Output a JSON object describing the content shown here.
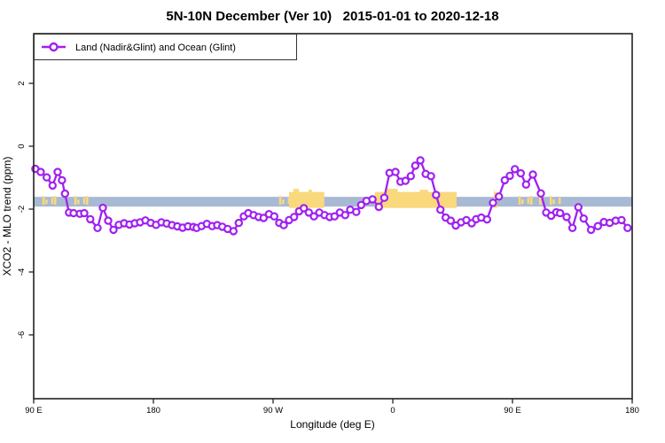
{
  "chart_data": {
    "type": "line",
    "title": "5N-10N December (Ver 10)   2015-01-01 to 2020-12-18",
    "xlabel": "Longitude (deg E)",
    "ylabel": "XCO2 - MLO trend (ppm)",
    "legend": [
      {
        "label": "Land (Nadir&Glint) and Ocean (Glint)",
        "color": "#A020F0",
        "marker": "open-circle"
      }
    ],
    "x_axis": {
      "range": [
        90,
        540
      ],
      "ticks": [
        {
          "value": 90,
          "label": "90 E"
        },
        {
          "value": 180,
          "label": "180"
        },
        {
          "value": 270,
          "label": "90 W"
        },
        {
          "value": 360,
          "label": "0"
        },
        {
          "value": 450,
          "label": "90 E"
        },
        {
          "value": 540,
          "label": "180"
        }
      ]
    },
    "y_axis": {
      "range": [
        -8.03,
        3.58
      ],
      "ticks": [
        {
          "value": 2,
          "label": "2"
        },
        {
          "value": 0,
          "label": "0"
        },
        {
          "value": -2,
          "label": "-2"
        },
        {
          "value": -4,
          "label": "-4"
        },
        {
          "value": -6,
          "label": "-6"
        }
      ]
    },
    "surface_band": {
      "description": "ocean-land strip along 5N-10N",
      "ocean_color": "#A8B9D4",
      "land_color": "#FAD87C",
      "value_from": -1.61,
      "value_to": -1.92,
      "land_segments": [
        {
          "from": 96.5,
          "to": 108.5,
          "style": "patchy"
        },
        {
          "from": 120.5,
          "to": 129.5,
          "style": "patchy"
        },
        {
          "from": 274.5,
          "to": 282.5,
          "style": "patchy"
        },
        {
          "from": 282,
          "to": 308.5,
          "style": "solid"
        },
        {
          "from": 346.5,
          "to": 408,
          "style": "solid"
        },
        {
          "from": 436,
          "to": 438.5,
          "style": "solid"
        },
        {
          "from": 454.5,
          "to": 463.5,
          "style": "patchy"
        },
        {
          "from": 470,
          "to": 475,
          "style": "patchy"
        },
        {
          "from": 478,
          "to": 485.5,
          "style": "patchy"
        }
      ]
    },
    "series": [
      {
        "name": "Land (Nadir&Glint) and Ocean (Glint)",
        "color": "#A020F0",
        "points": [
          [
            91.3,
            -0.72
          ],
          [
            95.3,
            -0.82
          ],
          [
            99.8,
            -0.99
          ],
          [
            104.2,
            -1.25
          ],
          [
            108,
            -0.82
          ],
          [
            111.3,
            -1.08
          ],
          [
            113.5,
            -1.51
          ],
          [
            116.5,
            -2.11
          ],
          [
            120,
            -2.13
          ],
          [
            124.7,
            -2.15
          ],
          [
            128,
            -2.13
          ],
          [
            132.5,
            -2.32
          ],
          [
            138,
            -2.6
          ],
          [
            142,
            -1.96
          ],
          [
            146,
            -2.37
          ],
          [
            150,
            -2.66
          ],
          [
            154,
            -2.5
          ],
          [
            158,
            -2.45
          ],
          [
            162,
            -2.49
          ],
          [
            166,
            -2.45
          ],
          [
            170,
            -2.42
          ],
          [
            174,
            -2.36
          ],
          [
            178,
            -2.44
          ],
          [
            182,
            -2.5
          ],
          [
            186,
            -2.42
          ],
          [
            190,
            -2.46
          ],
          [
            194,
            -2.51
          ],
          [
            198,
            -2.55
          ],
          [
            202,
            -2.59
          ],
          [
            206,
            -2.55
          ],
          [
            210,
            -2.57
          ],
          [
            212.5,
            -2.6
          ],
          [
            216.2,
            -2.54
          ],
          [
            220.2,
            -2.47
          ],
          [
            224.2,
            -2.54
          ],
          [
            228,
            -2.51
          ],
          [
            231.8,
            -2.56
          ],
          [
            235.8,
            -2.63
          ],
          [
            240.2,
            -2.7
          ],
          [
            244.2,
            -2.44
          ],
          [
            248,
            -2.23
          ],
          [
            251.3,
            -2.13
          ],
          [
            255.3,
            -2.19
          ],
          [
            259.1,
            -2.25
          ],
          [
            262.9,
            -2.28
          ],
          [
            266.9,
            -2.16
          ],
          [
            270.9,
            -2.23
          ],
          [
            274.7,
            -2.44
          ],
          [
            278,
            -2.51
          ],
          [
            282,
            -2.35
          ],
          [
            285.8,
            -2.25
          ],
          [
            289.5,
            -2.07
          ],
          [
            293.1,
            -1.97
          ],
          [
            296.9,
            -2.11
          ],
          [
            300.7,
            -2.23
          ],
          [
            304.7,
            -2.11
          ],
          [
            308.7,
            -2.19
          ],
          [
            312.5,
            -2.25
          ],
          [
            316.2,
            -2.23
          ],
          [
            320.2,
            -2.11
          ],
          [
            324.2,
            -2.19
          ],
          [
            328,
            -2.02
          ],
          [
            332.5,
            -2.09
          ],
          [
            336.2,
            -1.87
          ],
          [
            340.2,
            -1.74
          ],
          [
            344.7,
            -1.69
          ],
          [
            349.5,
            -1.93
          ],
          [
            353.6,
            -1.64
          ],
          [
            357.5,
            -0.85
          ],
          [
            362,
            -0.82
          ],
          [
            365.8,
            -1.13
          ],
          [
            369.5,
            -1.1
          ],
          [
            373.5,
            -0.95
          ],
          [
            376.9,
            -0.62
          ],
          [
            380.7,
            -0.45
          ],
          [
            384.7,
            -0.88
          ],
          [
            388.7,
            -0.95
          ],
          [
            392.5,
            -1.55
          ],
          [
            395.8,
            -2.02
          ],
          [
            399.8,
            -2.27
          ],
          [
            403.5,
            -2.37
          ],
          [
            407.3,
            -2.52
          ],
          [
            411.3,
            -2.42
          ],
          [
            415.3,
            -2.35
          ],
          [
            419.3,
            -2.45
          ],
          [
            422.7,
            -2.32
          ],
          [
            426.5,
            -2.27
          ],
          [
            430.9,
            -2.33
          ],
          [
            435.3,
            -1.8
          ],
          [
            439.8,
            -1.6
          ],
          [
            444.2,
            -1.08
          ],
          [
            448,
            -0.94
          ],
          [
            451.8,
            -0.73
          ],
          [
            456.2,
            -0.86
          ],
          [
            460.2,
            -1.22
          ],
          [
            465.3,
            -0.9
          ],
          [
            471.3,
            -1.5
          ],
          [
            475.3,
            -2.11
          ],
          [
            479.1,
            -2.21
          ],
          [
            482.9,
            -2.1
          ],
          [
            485.8,
            -2.13
          ],
          [
            490.7,
            -2.25
          ],
          [
            495.1,
            -2.6
          ],
          [
            499.5,
            -1.94
          ],
          [
            503.5,
            -2.3
          ],
          [
            509.1,
            -2.66
          ],
          [
            514.2,
            -2.54
          ],
          [
            518.7,
            -2.41
          ],
          [
            523.1,
            -2.44
          ],
          [
            527.5,
            -2.37
          ],
          [
            532,
            -2.35
          ],
          [
            536.5,
            -2.6
          ]
        ]
      }
    ]
  }
}
